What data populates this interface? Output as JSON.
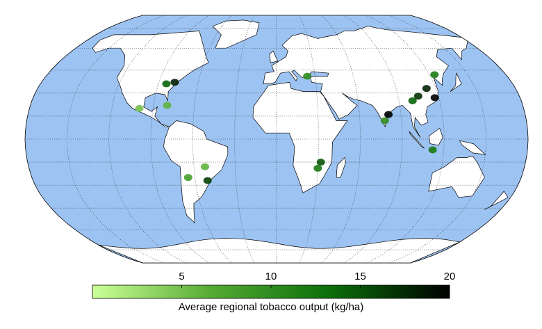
{
  "map": {
    "projection": "robinson",
    "ocean_color": "#9dc3f2",
    "land_color": "#ffffff",
    "graticule": true,
    "hotspots": {
      "lon": [
        113,
        117,
        105,
        100,
        124,
        81,
        78,
        -51,
        -52,
        32,
        30,
        -78,
        -84,
        24,
        112,
        -65,
        -80,
        -100
      ],
      "lat": [
        33,
        27,
        28,
        25,
        42,
        16,
        12,
        -27,
        -18,
        -15,
        -19,
        37,
        36,
        41,
        -7,
        -25,
        22,
        20
      ],
      "value": [
        18,
        20,
        17,
        14,
        12,
        20,
        10,
        16,
        6,
        15,
        12,
        18,
        14,
        10,
        12,
        8,
        6,
        5
      ]
    }
  },
  "colorbar": {
    "lim": [
      0,
      20
    ],
    "ticks": [
      5,
      10,
      15,
      20
    ],
    "colors": [
      "#ccff99",
      "#55aa33",
      "#0a6e0a",
      "#000000"
    ],
    "label": "Average regional tobacco output (kg/ha)"
  }
}
